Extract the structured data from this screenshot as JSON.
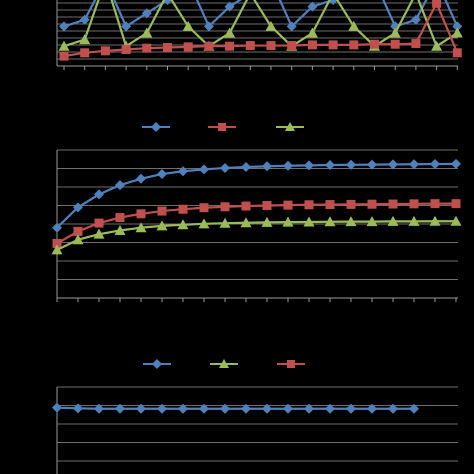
{
  "colors": {
    "background": "#000000",
    "grid": "#6e6e6e",
    "axis": "#9a9a9a"
  },
  "chart_data": [
    {
      "type": "line",
      "grid": true,
      "x": [
        1,
        2,
        3,
        4,
        5,
        6,
        7,
        8,
        9,
        10,
        11,
        12,
        13,
        14,
        15,
        16,
        17,
        18,
        19,
        20
      ],
      "ylim": [
        0,
        10
      ],
      "series": [
        {
          "color": "#4f81bd",
          "marker": "diamond",
          "values": [
            6,
            7,
            13,
            6,
            8,
            10,
            13,
            6,
            9,
            11,
            13,
            6,
            9,
            10,
            12,
            13,
            6,
            7,
            13,
            6
          ]
        },
        {
          "color": "#9bbb59",
          "marker": "triangle",
          "values": [
            3,
            4,
            13,
            3,
            5,
            11,
            6,
            3,
            5,
            11,
            6,
            3,
            5,
            11,
            6,
            3,
            5,
            11,
            3,
            5
          ]
        },
        {
          "color": "#c0504d",
          "marker": "square",
          "values": [
            1.5,
            2,
            2.3,
            2.5,
            2.7,
            2.8,
            2.9,
            3,
            3,
            3.1,
            3.1,
            3.1,
            3.2,
            3.2,
            3.2,
            3.3,
            3.3,
            3.4,
            9.5,
            2
          ]
        }
      ]
    },
    {
      "type": "line",
      "grid": true,
      "x": [
        1,
        2,
        3,
        4,
        5,
        6,
        7,
        8,
        9,
        10,
        11,
        12,
        13,
        14,
        15,
        16,
        17,
        18,
        19,
        20
      ],
      "ylim": [
        0,
        8
      ],
      "series": [
        {
          "color": "#4f81bd",
          "marker": "diamond",
          "values": [
            3.8,
            4.9,
            5.6,
            6.1,
            6.45,
            6.7,
            6.85,
            6.95,
            7.03,
            7.08,
            7.12,
            7.15,
            7.17,
            7.19,
            7.2,
            7.21,
            7.22,
            7.23,
            7.24,
            7.25
          ]
        },
        {
          "color": "#c0504d",
          "marker": "square",
          "values": [
            2.95,
            3.6,
            4.05,
            4.35,
            4.55,
            4.7,
            4.8,
            4.88,
            4.93,
            4.97,
            5,
            5.02,
            5.04,
            5.05,
            5.06,
            5.07,
            5.08,
            5.09,
            5.1,
            5.1
          ]
        },
        {
          "color": "#9bbb59",
          "marker": "triangle",
          "values": [
            2.6,
            3.15,
            3.45,
            3.65,
            3.8,
            3.9,
            3.96,
            4.01,
            4.04,
            4.07,
            4.09,
            4.1,
            4.11,
            4.12,
            4.13,
            4.13,
            4.14,
            4.14,
            4.15,
            4.15
          ]
        }
      ]
    },
    {
      "type": "line",
      "grid": true,
      "x": [
        1,
        2,
        3,
        4,
        5,
        6,
        7,
        8,
        9,
        10,
        11,
        12,
        13,
        14,
        15,
        16,
        17,
        18
      ],
      "ylim": [
        0,
        4
      ],
      "series": [
        {
          "color": "#4f81bd",
          "marker": "diamond",
          "values": [
            3.05,
            3.02,
            3,
            3,
            3,
            3,
            3,
            3,
            3,
            3,
            3,
            3,
            3,
            3,
            3,
            3,
            3,
            3
          ]
        }
      ]
    }
  ]
}
